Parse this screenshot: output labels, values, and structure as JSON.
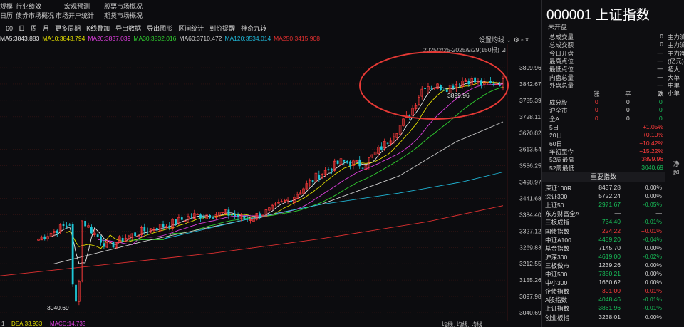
{
  "top_links": {
    "row1": [
      "规模",
      "行业绩效",
      "宏观预测",
      "股票市场概况"
    ],
    "row2": [
      "日历",
      "债券市场概况",
      "市场开户统计",
      "期货市场概况"
    ]
  },
  "toolbar": {
    "periods": [
      "60",
      "日",
      "周",
      "月"
    ],
    "items": [
      "更多周期",
      "K线叠加",
      "导出数据",
      "导出图形",
      "区间统计",
      "到价提醒",
      "神奇九转"
    ]
  },
  "ma_legend": [
    {
      "label": "MA5:3843.883",
      "color": "#e8e8e8"
    },
    {
      "label": "MA10:3843.794",
      "color": "#e5e000"
    },
    {
      "label": "MA20:3837.039",
      "color": "#e040e0"
    },
    {
      "label": "MA30:3832.016",
      "color": "#30d030"
    },
    {
      "label": "MA60:3710.472",
      "color": "#d0d0d0"
    },
    {
      "label": "MA120:3534.014",
      "color": "#20b8d8"
    },
    {
      "label": "MA250:3415.908",
      "color": "#e03030"
    }
  ],
  "settings_label": "设置均线",
  "date_range": "2025/2/25-2025/9/29(150根)",
  "bottom_bar": {
    "left": "1",
    "dea": "DEA:33.933",
    "macd": "MACD:14.733",
    "right": "均线, 均线, 均线"
  },
  "stock": {
    "code_name": "000001 上证指数",
    "status": "未开盘"
  },
  "summary": [
    {
      "k": "总成交量",
      "v": "0",
      "color": "white"
    },
    {
      "k": "总成交额",
      "v": "0",
      "color": "white"
    },
    {
      "k": "今日开盘",
      "v": "—",
      "color": "white"
    },
    {
      "k": "最高点位",
      "v": "—",
      "color": "white"
    },
    {
      "k": "最低点位",
      "v": "—",
      "color": "white"
    },
    {
      "k": "内盘总量",
      "v": "—",
      "color": "white"
    },
    {
      "k": "外盘总量",
      "v": "—",
      "color": "white"
    }
  ],
  "side_labels": [
    "主力流",
    "主力流",
    "主力净",
    "(亿元)",
    "超大",
    "大单",
    "中单",
    "小单"
  ],
  "stat_headers": [
    "涨",
    "平",
    "跌"
  ],
  "stat_rows": [
    {
      "k": "成分股",
      "up": "0",
      "flat": "0",
      "down": "0"
    },
    {
      "k": "沪全市",
      "up": "0",
      "flat": "0",
      "down": "0"
    },
    {
      "k": "全A",
      "up": "0",
      "flat": "0",
      "down": "0"
    }
  ],
  "perf": [
    {
      "k": "5日",
      "v": "+1.05%",
      "color": "red"
    },
    {
      "k": "20日",
      "v": "+0.10%",
      "color": "red"
    },
    {
      "k": "60日",
      "v": "+10.42%",
      "color": "red"
    },
    {
      "k": "年初至今",
      "v": "+15.22%",
      "color": "red"
    },
    {
      "k": "52周最高",
      "v": "3899.96",
      "color": "red"
    },
    {
      "k": "52周最低",
      "v": "3040.69",
      "color": "green"
    }
  ],
  "net_label": "净超",
  "index_header": "重要指数",
  "indices": [
    {
      "n": "深证100R",
      "p": "8437.28",
      "c": "0.00%",
      "pc": "white",
      "cc": "white"
    },
    {
      "n": "深证300",
      "p": "5722.24",
      "c": "0.00%",
      "pc": "white",
      "cc": "white"
    },
    {
      "n": "上证50",
      "p": "2971.67",
      "c": "-0.05%",
      "pc": "green",
      "cc": "green"
    },
    {
      "n": "东方财富全A",
      "p": "—",
      "c": "—",
      "pc": "white",
      "cc": "white"
    },
    {
      "n": "三板成指",
      "p": "734.40",
      "c": "-0.01%",
      "pc": "green",
      "cc": "green"
    },
    {
      "n": "国债指数",
      "p": "224.22",
      "c": "+0.01%",
      "pc": "red",
      "cc": "red"
    },
    {
      "n": "中证A100",
      "p": "4459.20",
      "c": "-0.04%",
      "pc": "green",
      "cc": "green"
    },
    {
      "n": "基金指数",
      "p": "7145.70",
      "c": "0.00%",
      "pc": "white",
      "cc": "white"
    },
    {
      "n": "沪深300",
      "p": "4619.00",
      "c": "-0.02%",
      "pc": "green",
      "cc": "green"
    },
    {
      "n": "三板做市",
      "p": "1239.26",
      "c": "0.00%",
      "pc": "white",
      "cc": "white"
    },
    {
      "n": "中证500",
      "p": "7350.21",
      "c": "0.00%",
      "pc": "green",
      "cc": "white"
    },
    {
      "n": "中小300",
      "p": "1660.62",
      "c": "0.00%",
      "pc": "white",
      "cc": "white"
    },
    {
      "n": "企债指数",
      "p": "301.00",
      "c": "+0.01%",
      "pc": "red",
      "cc": "red"
    },
    {
      "n": "A股指数",
      "p": "4048.46",
      "c": "-0.01%",
      "pc": "green",
      "cc": "green"
    },
    {
      "n": "上证指数",
      "p": "3861.96",
      "c": "-0.01%",
      "pc": "green",
      "cc": "green"
    },
    {
      "n": "创业板指",
      "p": "3238.01",
      "c": "0.00%",
      "pc": "white",
      "cc": "white"
    }
  ],
  "chart_data": {
    "type": "candlestick",
    "y_ticks": [
      3899.96,
      3842.67,
      3785.39,
      3728.11,
      3670.82,
      3613.54,
      3556.25,
      3498.97,
      3441.68,
      3384.4,
      3327.12,
      3269.83,
      3212.55,
      3155.26,
      3097.98,
      3040.69
    ],
    "ylim": [
      3040.69,
      3899.96
    ],
    "annotations": [
      {
        "text": "3899.96",
        "value": 3899.96
      },
      {
        "text": "3040.69",
        "value": 3040.69
      }
    ],
    "highlight": {
      "shape": "ellipse",
      "color": "#e53935"
    },
    "ma_series": [
      {
        "name": "MA5",
        "color": "#e8e8e8"
      },
      {
        "name": "MA10",
        "color": "#e5e000"
      },
      {
        "name": "MA20",
        "color": "#e040e0"
      },
      {
        "name": "MA30",
        "color": "#30d030"
      },
      {
        "name": "MA60",
        "color": "#d0d0d0"
      },
      {
        "name": "MA120",
        "color": "#20b8d8"
      },
      {
        "name": "MA250",
        "color": "#e03030"
      }
    ]
  }
}
